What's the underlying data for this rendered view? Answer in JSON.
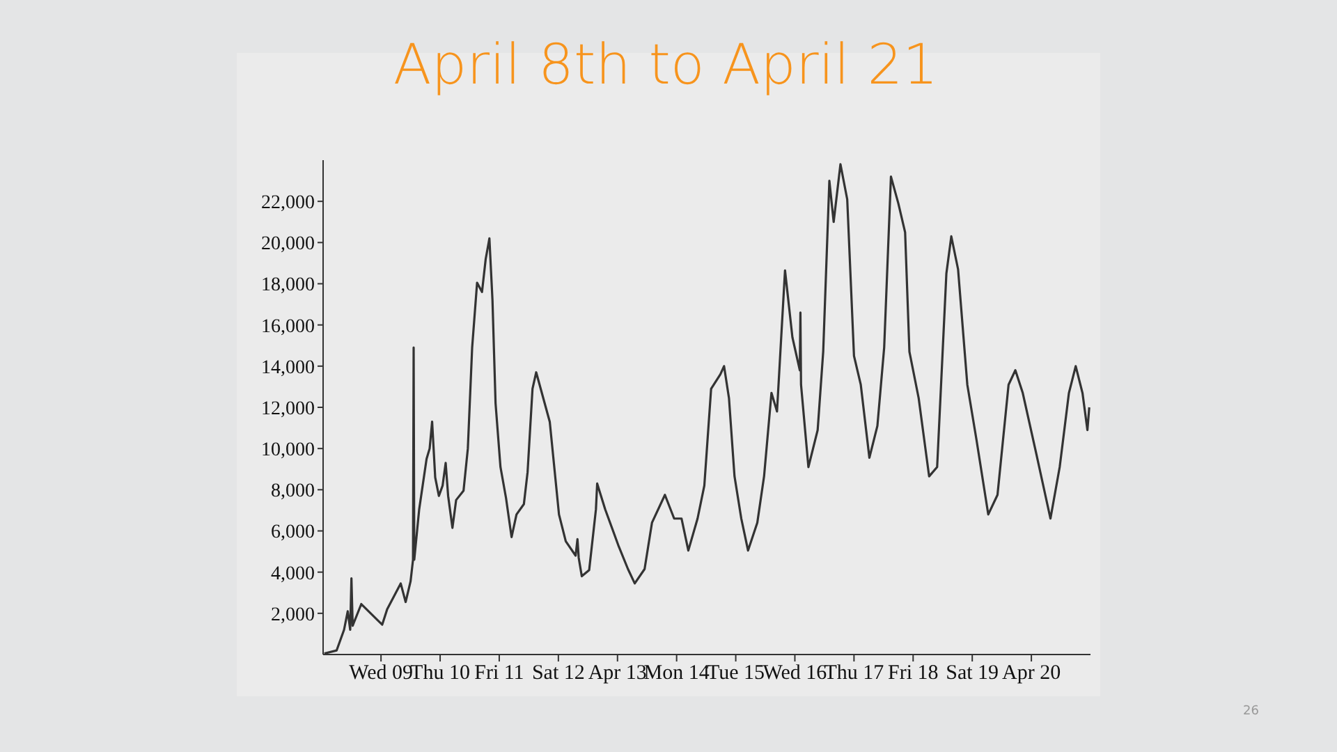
{
  "chart_data": {
    "type": "line",
    "title": "April 8th to April 21",
    "color": "#333333",
    "x": [
      "--04-08T01:00",
      "--04-08T06:00",
      "--04-08T09:00",
      "--04-08T10:30",
      "--04-08T11:30",
      "--04-08T12:00",
      "--04-08T12:30",
      "--04-08T16:00",
      "--04-08T22:45",
      "--04-09T00:30",
      "--04-09T02:30",
      "--04-09T08:00",
      "--04-09T10:00",
      "--04-09T12:00",
      "--04-09T13:00",
      "--04-09T13:15",
      "--04-09T13:30",
      "--04-09T15:30",
      "--04-09T18:30",
      "--04-09T19:45",
      "--04-09T20:45",
      "--04-09T22:00",
      "--04-09T23:30",
      "--04-10T01:00",
      "--04-10T02:15",
      "--04-10T03:15",
      "--04-10T05:00",
      "--04-10T06:30",
      "--04-10T09:30",
      "--04-10T11:15",
      "--04-10T13:00",
      "--04-10T15:00",
      "--04-10T17:00",
      "--04-10T18:30",
      "--04-10T20:00",
      "--04-10T21:15",
      "--04-10T22:30",
      "--04-11T00:30",
      "--04-11T02:45",
      "--04-11T05:00",
      "--04-11T07:00",
      "--04-11T10:00",
      "--04-11T11:30",
      "--04-11T13:30",
      "--04-11T15:00",
      "--04-11T20:30",
      "--04-12T00:15",
      "--04-12T03:00",
      "--04-12T07:00",
      "--04-12T07:45",
      "--04-12T08:15",
      "--04-12T09:30",
      "--04-12T12:30",
      "--04-12T15:15",
      "--04-12T15:45",
      "--04-12T19:00",
      "--04-13T00:30",
      "--04-13T04:15",
      "--04-13T07:00",
      "--04-13T11:00",
      "--04-13T14:00",
      "--04-13T19:15",
      "--04-13T23:00",
      "--04-14T02:00",
      "--04-14T04:45",
      "--04-14T08:30",
      "--04-14T11:15",
      "--04-14T14:00",
      "--04-14T17:45",
      "--04-14T19:15",
      "--04-14T21:15",
      "--04-14T23:30",
      "--04-15T02:15",
      "--04-15T05:00",
      "--04-15T08:45",
      "--04-15T11:30",
      "--04-15T14:30",
      "--04-15T16:45",
      "--04-15T20:00",
      "--04-15T23:00",
      "--04-16T02:00",
      "--04-16T02:15",
      "--04-16T02:30",
      "--04-16T05:30",
      "--04-16T09:15",
      "--04-16T11:30",
      "--04-16T14:00",
      "--04-16T15:45",
      "--04-16T18:30",
      "--04-16T21:15",
      "--04-17T00:00",
      "--04-17T02:45",
      "--04-17T06:15",
      "--04-17T09:30",
      "--04-17T12:15",
      "--04-17T15:00",
      "--04-17T18:00",
      "--04-17T20:45",
      "--04-17T22:30",
      "--04-18T02:15",
      "--04-18T06:30",
      "--04-18T09:45",
      "--04-18T13:30",
      "--04-18T15:30",
      "--04-18T18:15",
      "--04-18T22:00",
      "--04-19T01:45",
      "--04-19T06:30",
      "--04-19T10:15",
      "--04-19T14:45",
      "--04-19T17:30",
      "--04-19T20:30",
      "--04-20T02:00",
      "--04-20T07:45",
      "--04-20T11:30",
      "--04-20T15:15",
      "--04-20T18:00",
      "--04-20T20:45",
      "--04-20T22:45",
      "--04-20T23:30"
    ],
    "values": [
      50,
      200,
      1200,
      2100,
      1200,
      3700,
      1400,
      2450,
      1650,
      1450,
      2200,
      3450,
      2550,
      3550,
      4600,
      14900,
      4600,
      7050,
      9500,
      10000,
      11300,
      8600,
      7700,
      8200,
      9300,
      7700,
      6150,
      7500,
      7950,
      10000,
      14900,
      18050,
      17600,
      19200,
      20200,
      17200,
      12200,
      9100,
      7600,
      5700,
      6800,
      7300,
      8850,
      12900,
      13700,
      11300,
      6800,
      5500,
      4800,
      5600,
      4700,
      3800,
      4100,
      7050,
      8300,
      7050,
      5250,
      4150,
      3450,
      4150,
      6400,
      7750,
      6600,
      6600,
      5050,
      6600,
      8200,
      12900,
      13600,
      14000,
      12450,
      8650,
      6600,
      5050,
      6400,
      8650,
      12700,
      11800,
      18650,
      15400,
      13800,
      16600,
      13100,
      9100,
      10900,
      14700,
      23000,
      21000,
      23800,
      22100,
      14500,
      13100,
      9550,
      11100,
      14900,
      23200,
      21900,
      20500,
      14700,
      12450,
      8650,
      9100,
      18500,
      20300,
      18700,
      13100,
      10400,
      6800,
      7750,
      13100,
      13800,
      12700,
      9750,
      6600,
      9100,
      12700,
      14000,
      12700,
      10900,
      12000
    ],
    "xticks": [
      {
        "value": "--04-09",
        "label": "Wed 09"
      },
      {
        "value": "--04-10",
        "label": "Thu 10"
      },
      {
        "value": "--04-11",
        "label": "Fri 11"
      },
      {
        "value": "--04-12",
        "label": "Sat 12"
      },
      {
        "value": "--04-13",
        "label": "Apr 13"
      },
      {
        "value": "--04-14",
        "label": "Mon 14"
      },
      {
        "value": "--04-15",
        "label": "Tue 15"
      },
      {
        "value": "--04-16",
        "label": "Wed 16"
      },
      {
        "value": "--04-17",
        "label": "Thu 17"
      },
      {
        "value": "--04-18",
        "label": "Fri 18"
      },
      {
        "value": "--04-19",
        "label": "Sat 19"
      },
      {
        "value": "--04-20",
        "label": "Apr 20"
      }
    ],
    "xlim": [
      "--04-08T00:30",
      "--04-21T00:00"
    ],
    "ylim": [
      0,
      24000
    ],
    "yticks": [
      {
        "value": 2000,
        "label": "2,000"
      },
      {
        "value": 4000,
        "label": "4,000"
      },
      {
        "value": 6000,
        "label": "6,000"
      },
      {
        "value": 8000,
        "label": "8,000"
      },
      {
        "value": 10000,
        "label": "10,000"
      },
      {
        "value": 12000,
        "label": "12,000"
      },
      {
        "value": 14000,
        "label": "14,000"
      },
      {
        "value": 16000,
        "label": "16,000"
      },
      {
        "value": 18000,
        "label": "18,000"
      },
      {
        "value": 20000,
        "label": "20,000"
      },
      {
        "value": 22000,
        "label": "22,000"
      }
    ],
    "annotations": [
      "26"
    ]
  }
}
